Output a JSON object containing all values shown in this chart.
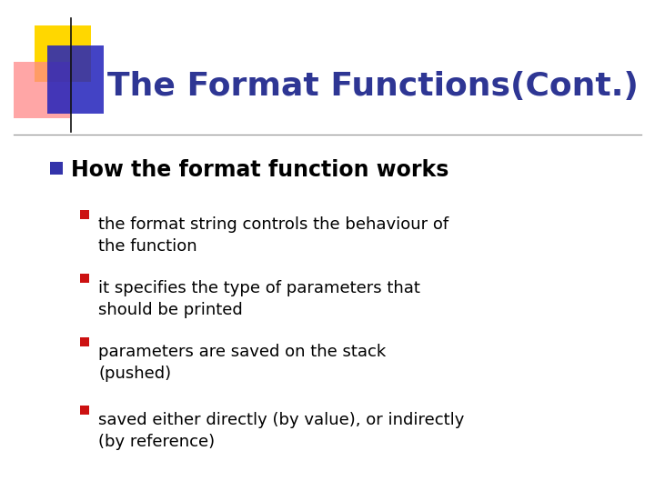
{
  "title": "The Format Functions(Cont.)",
  "title_color": "#2E3694",
  "background_color": "#FFFFFF",
  "bullet1_text": "How the format function works",
  "bullet1_marker_color": "#3333AA",
  "sub_bullets": [
    "the format string controls the behaviour of\nthe function",
    "it specifies the type of parameters that\nshould be printed",
    "parameters are saved on the stack\n(pushed)",
    "saved either directly (by value), or indirectly\n(by reference)"
  ],
  "sub_bullet_marker_color": "#CC1111",
  "yellow_color": "#FFD700",
  "pink_color": "#FF8888",
  "blue_deco_color": "#2222BB",
  "line_color": "#999999",
  "title_fontsize": 26,
  "bullet1_fontsize": 17,
  "sub_fontsize": 13
}
